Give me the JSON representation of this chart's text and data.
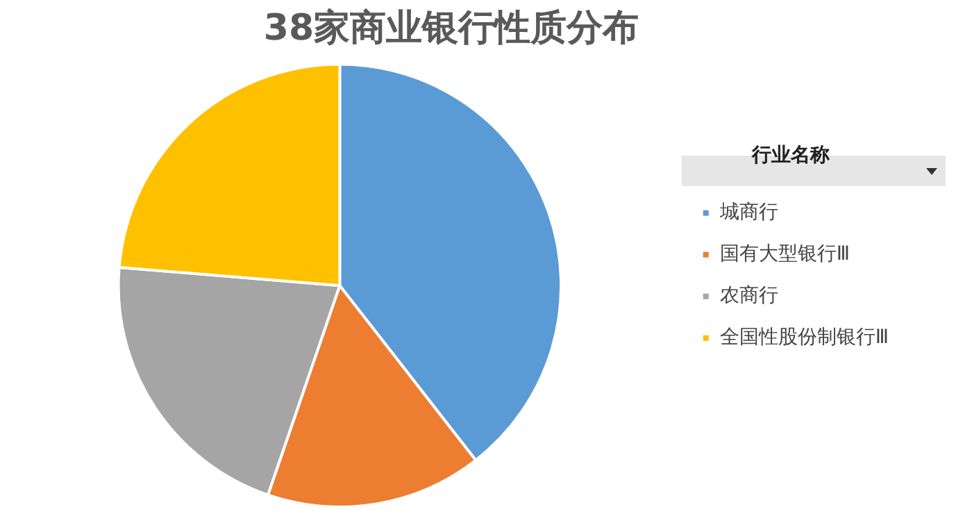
{
  "chart_data": {
    "type": "pie",
    "title": "38家商业银行性质分布",
    "legend_title": "行业名称",
    "legend": "right",
    "categories": [
      "城商行",
      "国有大型银行Ⅲ",
      "农商行",
      "全国性股份制银行Ⅲ"
    ],
    "values": [
      39.47,
      15.79,
      21.05,
      23.69
    ],
    "colors": [
      "#5b9bd5",
      "#ed7d31",
      "#a5a5a5",
      "#ffc000"
    ]
  }
}
